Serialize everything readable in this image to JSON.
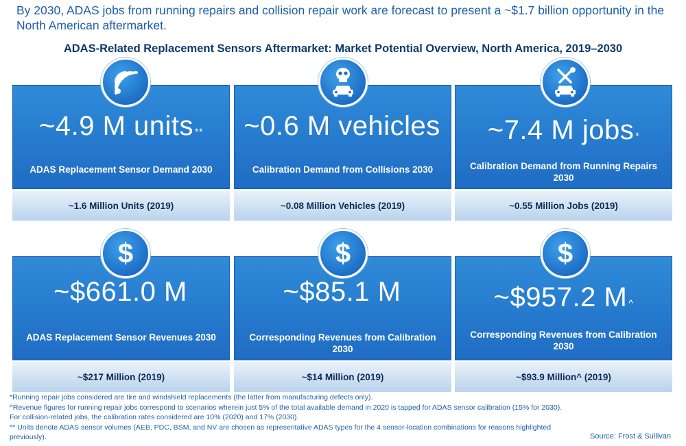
{
  "intro": "By 2030, ADAS jobs from running repairs and collision repair work are forecast to present a ~$1.7 billion opportunity in the North American aftermarket.",
  "title": "ADAS-Related Replacement Sensors Aftermarket: Market Potential Overview, North America, 2019–2030",
  "cards": [
    {
      "icon": "wifi-signal-icon",
      "value": "~4.9 M units",
      "suffix": "**",
      "label": "ADAS Replacement Sensor Demand 2030",
      "sub": "~1.6 Million Units (2019)"
    },
    {
      "icon": "skull-car-icon",
      "value": "~0.6 M vehicles",
      "suffix": "",
      "label": "Calibration Demand from Collisions 2030",
      "sub": "~0.08 Million Vehicles (2019)"
    },
    {
      "icon": "wrench-screwdriver-car-icon",
      "value": "~7.4 M jobs",
      "suffix": "*",
      "label": "Calibration Demand from Running Repairs 2030",
      "sub": "~0.55 Million Jobs (2019)"
    },
    {
      "icon": "dollar-icon",
      "value": "~$661.0 M",
      "suffix": "",
      "label": "ADAS Replacement Sensor Revenues 2030",
      "sub": "~$217 Million (2019)"
    },
    {
      "icon": "dollar-icon",
      "value": "~$85.1 M",
      "suffix": "",
      "label": "Corresponding Revenues from Calibration 2030",
      "sub": "~$14 Million (2019)"
    },
    {
      "icon": "dollar-icon",
      "value": "~$957.2 M",
      "suffix": "^",
      "label": "Corresponding Revenues from Calibration 2030",
      "sub": "~$93.9 Million^ (2019)"
    }
  ],
  "icon_symbol": "$",
  "footnotes": [
    "*Running repair jobs considered are tire and windshield replacements (the latter from manufacturing defects only).",
    "^Revenue figures for running repair jobs correspond to scenarios wherein just 5% of the total available demand in 2020 is tapped for ADAS sensor calibration (15% for 2030). For collision-related jobs, the calibration rates considered are 10% (2020) and 17% (2030).",
    "** Units denote ADAS sensor volumes (AEB, PDC, BSM, and NV are chosen as representative ADAS types for the 4 sensor-location combinations for reasons highlighted previously)."
  ],
  "source": "Source: Frost & Sullivan",
  "colors": {
    "accent": "#1f6cc4",
    "band": "#b9d3ec",
    "text": "#1f5fa8"
  }
}
